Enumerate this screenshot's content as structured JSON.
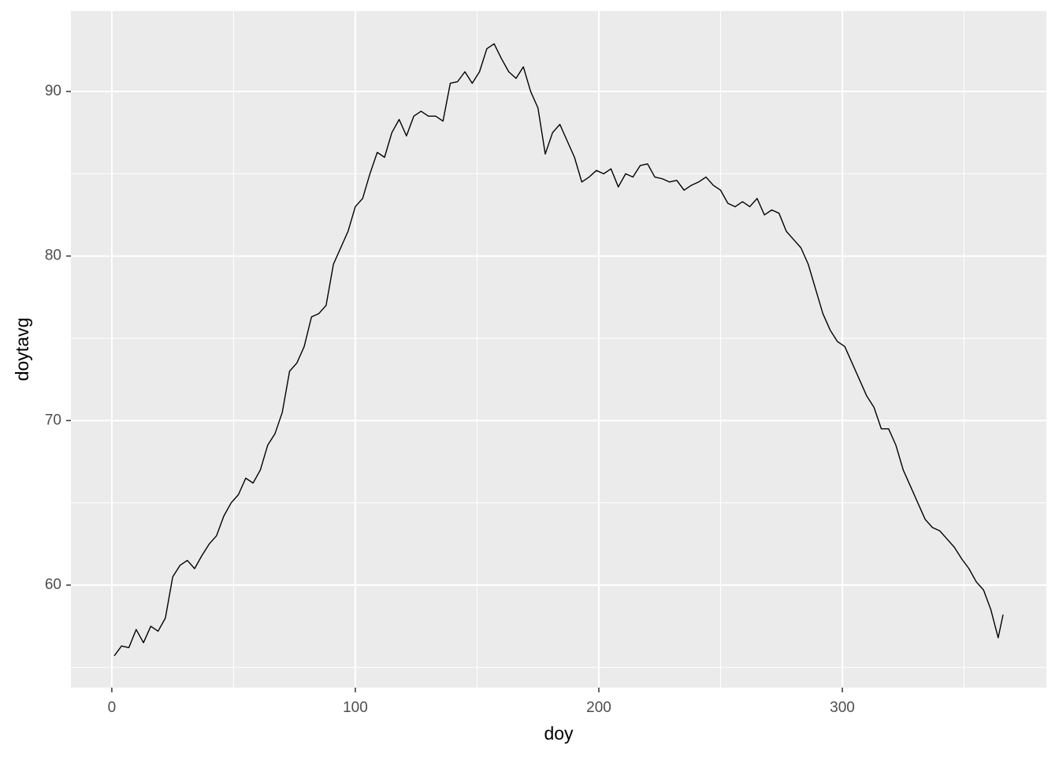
{
  "chart_data": {
    "type": "line",
    "x_label": "doy",
    "y_label": "doytavg",
    "x": [
      1,
      4,
      7,
      10,
      13,
      16,
      19,
      22,
      25,
      28,
      31,
      34,
      37,
      40,
      43,
      46,
      49,
      52,
      55,
      58,
      61,
      64,
      67,
      70,
      73,
      76,
      79,
      82,
      85,
      88,
      91,
      94,
      97,
      100,
      103,
      106,
      109,
      112,
      115,
      118,
      121,
      124,
      127,
      130,
      133,
      136,
      139,
      142,
      145,
      148,
      151,
      154,
      157,
      160,
      163,
      166,
      169,
      172,
      175,
      178,
      181,
      184,
      187,
      190,
      193,
      196,
      199,
      202,
      205,
      208,
      211,
      214,
      217,
      220,
      223,
      226,
      229,
      232,
      235,
      238,
      241,
      244,
      247,
      250,
      253,
      256,
      259,
      262,
      265,
      268,
      271,
      274,
      277,
      280,
      283,
      286,
      289,
      292,
      295,
      298,
      301,
      304,
      307,
      310,
      313,
      316,
      319,
      322,
      325,
      328,
      331,
      334,
      337,
      340,
      343,
      346,
      349,
      352,
      355,
      358,
      361,
      364,
      366
    ],
    "series": [
      {
        "name": "doytavg",
        "color": "#000000",
        "values": [
          55.7,
          56.3,
          56.2,
          57.3,
          56.5,
          57.5,
          57.2,
          58,
          60.5,
          61.2,
          61.5,
          61,
          61.8,
          62.5,
          63,
          64.2,
          65,
          65.5,
          66.5,
          66.2,
          67,
          68.5,
          69.2,
          70.5,
          73,
          73.5,
          74.5,
          76.3,
          76.5,
          77,
          79.5,
          80.5,
          81.5,
          83,
          83.5,
          85,
          86.3,
          86,
          87.5,
          88.3,
          87.3,
          88.5,
          88.8,
          88.5,
          88.5,
          88.2,
          90.5,
          90.6,
          91.2,
          90.5,
          91.2,
          92.6,
          92.9,
          92,
          91.2,
          90.8,
          91.5,
          90,
          89,
          86.2,
          87.5,
          88,
          87,
          86,
          84.5,
          84.8,
          85.2,
          85,
          85.3,
          84.2,
          85,
          84.8,
          85.5,
          85.6,
          84.8,
          84.7,
          84.5,
          84.6,
          84,
          84.3,
          84.5,
          84.8,
          84.3,
          84,
          83.2,
          83,
          83.3,
          83,
          83.5,
          82.5,
          82.8,
          82.6,
          81.5,
          81,
          80.5,
          79.5,
          78,
          76.5,
          75.5,
          74.8,
          74.5,
          73.5,
          72.5,
          71.5,
          70.8,
          69.5,
          69.5,
          68.5,
          67,
          66,
          65,
          64,
          63.5,
          63.3,
          62.8,
          62.3,
          61.6,
          61,
          60.2,
          59.7,
          58.5,
          56.8,
          58.2
        ]
      }
    ],
    "xlim": [
      -16.8,
      383.8
    ],
    "ylim": [
      53.77,
      94.89
    ],
    "xticks": [
      0,
      100,
      200,
      300
    ],
    "yticks": [
      60,
      70,
      80,
      90
    ],
    "xminor": [
      50,
      150,
      250,
      350
    ],
    "yminor": [
      55,
      65,
      75,
      85
    ],
    "grid": true
  }
}
